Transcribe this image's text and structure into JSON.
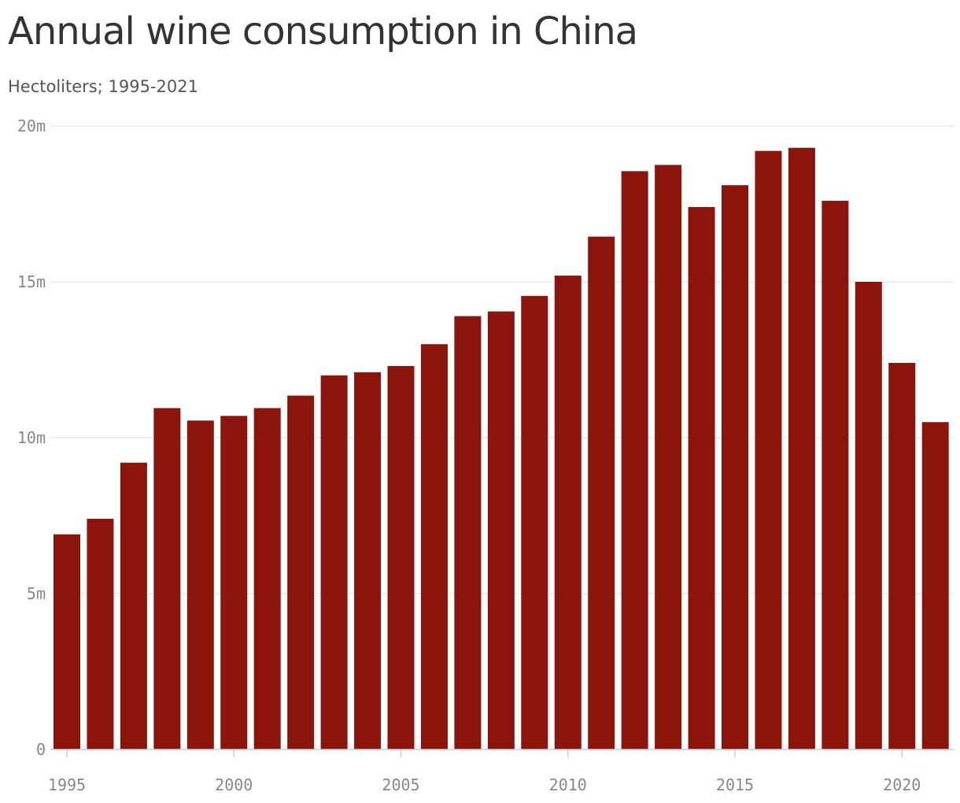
{
  "title": "Annual wine consumption in China",
  "subtitle": "Hectoliters; 1995-2021",
  "colors": {
    "bar": "#8b150c",
    "gridline": "#dddddd",
    "axis": "#cccccc",
    "tick_text": "#888888",
    "title_text": "#333333"
  },
  "chart_data": {
    "type": "bar",
    "title": "Annual wine consumption in China",
    "subtitle": "Hectoliters; 1995-2021",
    "xlabel": "",
    "ylabel": "",
    "ylim": [
      0,
      20000000
    ],
    "grid": true,
    "y_ticks": [
      {
        "value": 0,
        "label": "0"
      },
      {
        "value": 5000000,
        "label": "5m"
      },
      {
        "value": 10000000,
        "label": "10m"
      },
      {
        "value": 15000000,
        "label": "15m"
      },
      {
        "value": 20000000,
        "label": "20m"
      }
    ],
    "x_ticks": [
      {
        "value": 1995,
        "label": "1995"
      },
      {
        "value": 2000,
        "label": "2000"
      },
      {
        "value": 2005,
        "label": "2005"
      },
      {
        "value": 2010,
        "label": "2010"
      },
      {
        "value": 2015,
        "label": "2015"
      },
      {
        "value": 2020,
        "label": "2020"
      }
    ],
    "categories": [
      1995,
      1996,
      1997,
      1998,
      1999,
      2000,
      2001,
      2002,
      2003,
      2004,
      2005,
      2006,
      2007,
      2008,
      2009,
      2010,
      2011,
      2012,
      2013,
      2014,
      2015,
      2016,
      2017,
      2018,
      2019,
      2020,
      2021
    ],
    "values": [
      6900000,
      7400000,
      9200000,
      10950000,
      10550000,
      10700000,
      10950000,
      11350000,
      12000000,
      12100000,
      12300000,
      13000000,
      13900000,
      14050000,
      14550000,
      15200000,
      16450000,
      18550000,
      18750000,
      17400000,
      18100000,
      19200000,
      19300000,
      17600000,
      15000000,
      12400000,
      10500000
    ]
  }
}
